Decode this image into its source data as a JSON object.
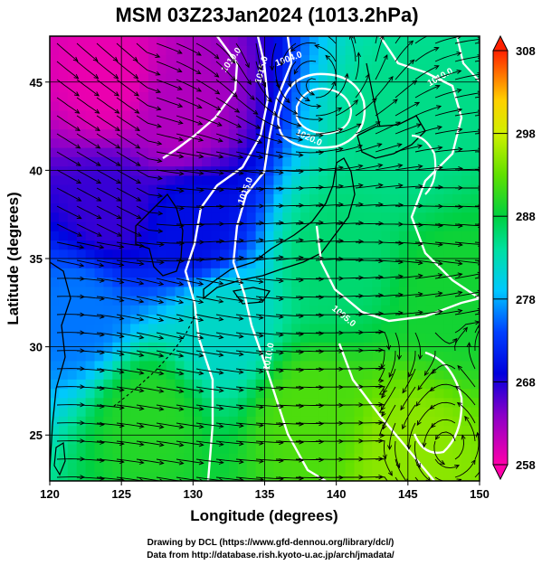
{
  "chart_data": {
    "type": "heatmap",
    "title": "MSM 03Z23Jan2024 (1013.2hPa)",
    "xlabel": "Longitude (degrees)",
    "ylabel": "Latitude  (degrees)",
    "xlim": [
      120,
      150
    ],
    "ylim": [
      22.4,
      47.6
    ],
    "xticks": [
      "120",
      "125",
      "130",
      "135",
      "140",
      "145",
      "150"
    ],
    "yticks": [
      "25",
      "30",
      "35",
      "40",
      "45"
    ],
    "colorbar": {
      "min": 258,
      "max": 308,
      "ticks": [
        "258",
        "268",
        "278",
        "288",
        "298",
        "308"
      ]
    },
    "field_samples": [
      {
        "lon": 124,
        "lat": 45,
        "value": 259
      },
      {
        "lon": 129,
        "lat": 43,
        "value": 262
      },
      {
        "lon": 124,
        "lat": 38,
        "value": 267
      },
      {
        "lon": 130,
        "lat": 37,
        "value": 270
      },
      {
        "lon": 122,
        "lat": 32,
        "value": 276
      },
      {
        "lon": 132,
        "lat": 31,
        "value": 282
      },
      {
        "lon": 140,
        "lat": 35,
        "value": 286
      },
      {
        "lon": 145,
        "lat": 42,
        "value": 285
      },
      {
        "lon": 148,
        "lat": 33,
        "value": 289
      },
      {
        "lon": 127,
        "lat": 26,
        "value": 290
      },
      {
        "lon": 138,
        "lat": 26,
        "value": 292
      },
      {
        "lon": 145,
        "lat": 24,
        "value": 295
      }
    ],
    "isobar_labels": [
      "1015.0",
      "1015.0",
      "1010.0",
      "1020.0",
      "1004.0",
      "1010.0",
      "1005.0",
      "1010.0"
    ],
    "low_center": {
      "lon": 138.5,
      "lat": 44.8
    }
  },
  "colors": {
    "isobar": "#ffffff",
    "arrow": "#000000",
    "grid": "#000000"
  },
  "credits": [
    "Drawing by DCL (https://www.gfd-dennou.org/library/dcl/)",
    "Data from http://database.rish.kyoto-u.ac.jp/arch/jmadata/"
  ]
}
